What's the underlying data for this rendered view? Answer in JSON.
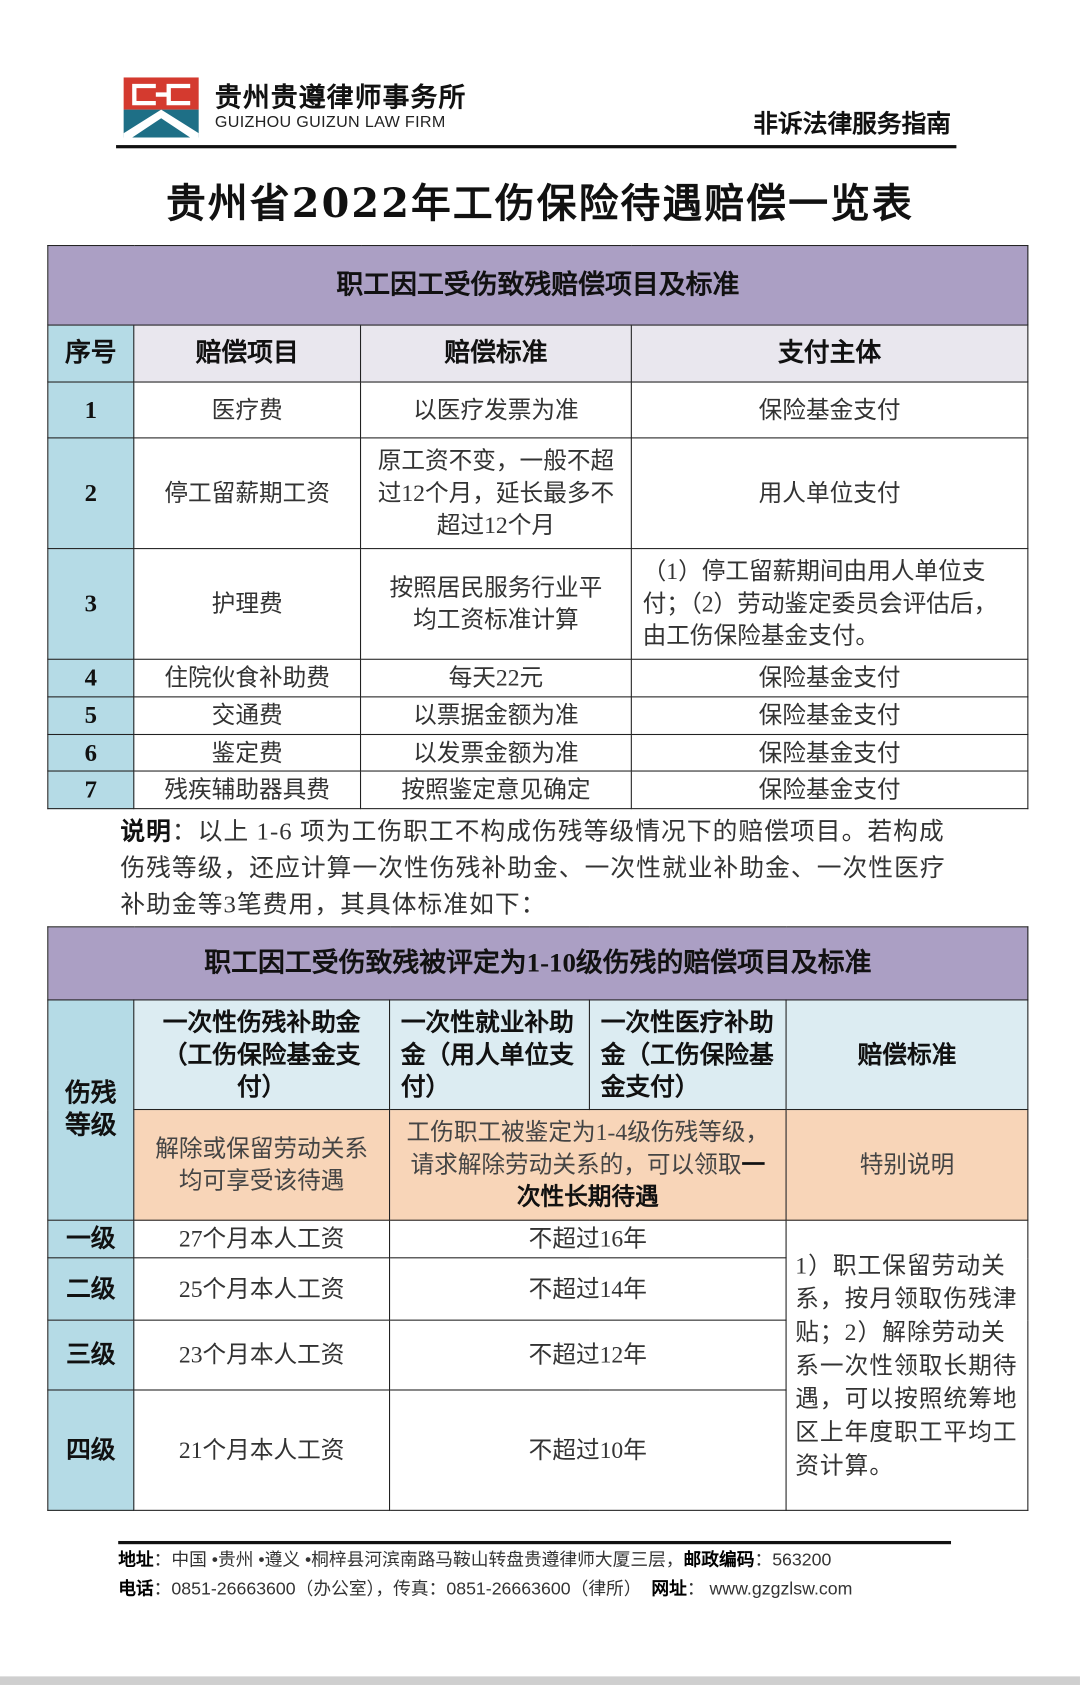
{
  "header": {
    "firm_name_cn": "贵州贵遵律师事务所",
    "firm_name_en": "GUIZHOU GUIZUN LAW FIRM",
    "guide_label": "非诉法律服务指南",
    "logo_colors": {
      "red": "#d43a2f",
      "teal": "#1e6f86"
    }
  },
  "title": "贵州省2022年工伤保险待遇赔偿一览表",
  "table1": {
    "title": "职工因工受伤致残赔偿项目及标准",
    "headers": [
      "序号",
      "赔偿项目",
      "赔偿标准",
      "支付主体"
    ],
    "rows": [
      {
        "no": "1",
        "item": "医疗费",
        "standard": "以医疗发票为准",
        "payer": "保险基金支付"
      },
      {
        "no": "2",
        "item": "停工留薪期工资",
        "standard": "原工资不变，一般不超过12个月，延长最多不超过12个月",
        "payer": "用人单位支付"
      },
      {
        "no": "3",
        "item": "护理费",
        "standard": "按照居民服务行业平均工资标准计算",
        "payer": "（1）停工留薪期间由用人单位支付；（2）劳动鉴定委员会评估后，由工伤保险基金支付。"
      },
      {
        "no": "4",
        "item": "住院伙食补助费",
        "standard": "每天22元",
        "payer": "保险基金支付"
      },
      {
        "no": "5",
        "item": "交通费",
        "standard": "以票据金额为准",
        "payer": "保险基金支付"
      },
      {
        "no": "6",
        "item": "鉴定费",
        "standard": "以发票金额为准",
        "payer": "保险基金支付"
      },
      {
        "no": "7",
        "item": "残疾辅助器具费",
        "standard": "按照鉴定意见确定",
        "payer": "保险基金支付"
      }
    ]
  },
  "note": {
    "label": "说明",
    "text": "：以上 1-6 项为工伤职工不构成伤残等级情况下的赔偿项目。若构成伤残等级，还应计算一次性伤残补助金、一次性就业补助金、一次性医疗补助金等3笔费用，其具体标准如下："
  },
  "table2": {
    "title": "职工因工受伤致残被评定为1-10级伤残的赔偿项目及标准",
    "grade_header": "伤残等级",
    "headers": [
      "一次性伤残补助金（工伤保险基金支付）",
      "一次性就业补助金（用人单位支付）",
      "一次性医疗补助金（工伤保险基金支付）",
      "赔偿标准"
    ],
    "sub_row": {
      "col1": "解除或保留劳动关系均可享受该待遇",
      "merged_prefix": "工伤职工被鉴定为1-4级伤残等级，请求解除劳动关系的，可以领取",
      "merged_bold": "一次性长期待遇",
      "special": "特别说明"
    },
    "rows": [
      {
        "grade": "一级",
        "subsidy": "27个月本人工资",
        "long_term": "不超过16年"
      },
      {
        "grade": "二级",
        "subsidy": "25个月本人工资",
        "long_term": "不超过14年"
      },
      {
        "grade": "三级",
        "subsidy": "23个月本人工资",
        "long_term": "不超过12年"
      },
      {
        "grade": "四级",
        "subsidy": "21个月本人工资",
        "long_term": "不超过10年"
      }
    ],
    "special_note": "1）职工保留劳动关系，按月领取伤残津贴；2）解除劳动关系一次性领取长期待遇，可以按照统筹地区上年度职工平均工资计算。"
  },
  "footer": {
    "address_label": "地址",
    "address": "：中国 •贵州 •遵义 •桐梓县河滨南路马鞍山转盘贵遵律师大厦三层，",
    "postcode_label": "邮政编码",
    "postcode": "：563200",
    "phone_label": "电话",
    "phone": "：0851-26663600（办公室），传真：0851-26663600（律所）",
    "website_label": "网址",
    "website": "：  www.gzgzlsw.com"
  },
  "colors": {
    "band": "#ab9fc4",
    "header_gray": "#e9e7ee",
    "seq_blue": "#b5dbe6",
    "header_blue": "#dcecf2",
    "orange": "#f8d5b8"
  }
}
